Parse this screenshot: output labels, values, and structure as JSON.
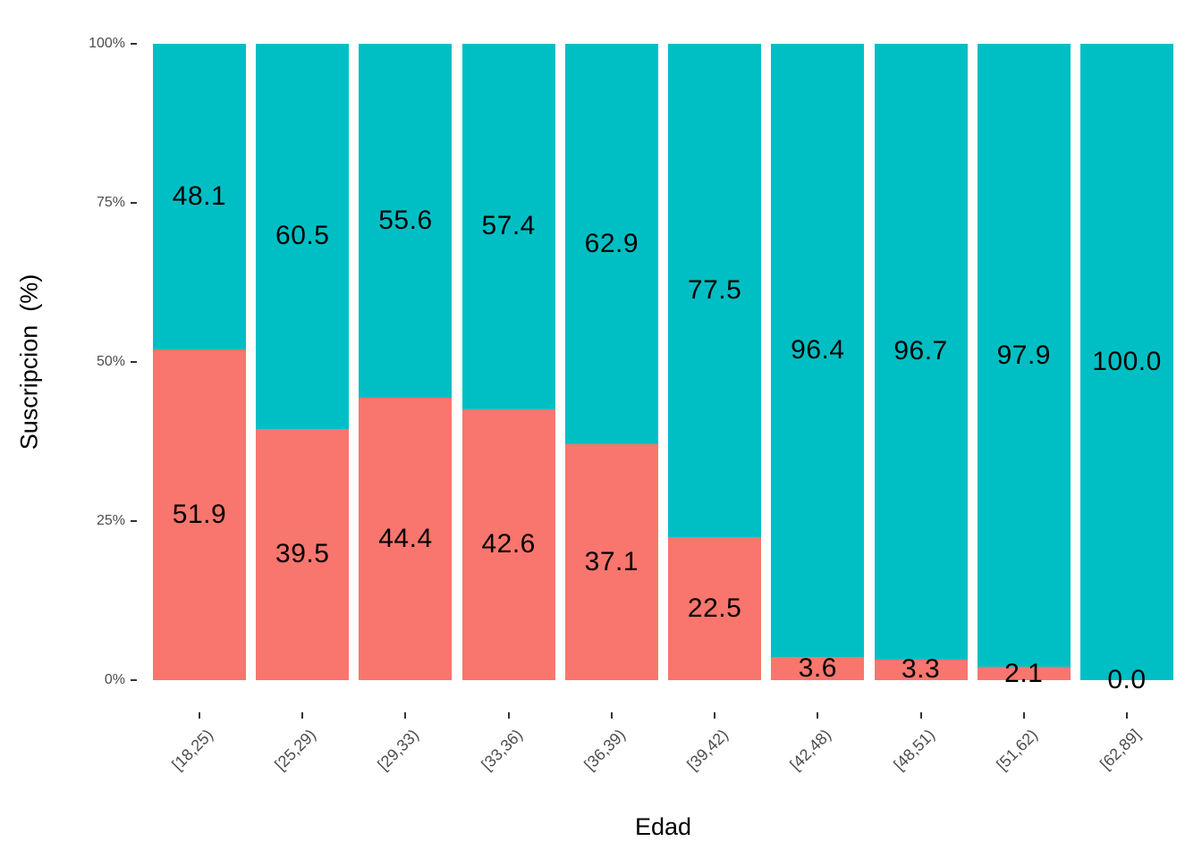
{
  "chart_data": {
    "type": "bar",
    "stacked": true,
    "normalized_percent": true,
    "title": "",
    "xlabel": "Edad",
    "ylabel": "Suscripcion  (%)",
    "categories": [
      "[18,25)",
      "[25,29)",
      "[29,33)",
      "[33,36)",
      "[36,39)",
      "[39,42)",
      "[42,48)",
      "[48,51)",
      "[51,62)",
      "[62,89]"
    ],
    "series": [
      {
        "name": "bottom-segment",
        "color": "#F8766D",
        "values": [
          51.9,
          39.5,
          44.4,
          42.6,
          37.1,
          22.5,
          3.6,
          3.3,
          2.1,
          0.0
        ]
      },
      {
        "name": "top-segment",
        "color": "#00BFC4",
        "values": [
          48.1,
          60.5,
          55.6,
          57.4,
          62.9,
          77.5,
          96.4,
          96.7,
          97.9,
          100.0
        ]
      }
    ],
    "bar_label_decimals": 1,
    "y_ticks": [
      {
        "label": "0%",
        "value": 0
      },
      {
        "label": "25%",
        "value": 25
      },
      {
        "label": "50%",
        "value": 50
      },
      {
        "label": "75%",
        "value": 75
      },
      {
        "label": "100%",
        "value": 100
      }
    ],
    "ylim": [
      0,
      100
    ],
    "grid": false,
    "legend": "none",
    "colors": {
      "tick_label": "#4D4D4D",
      "tick_mark": "#333333",
      "bar_label_text": "#000000",
      "background": "#FFFFFF"
    }
  }
}
